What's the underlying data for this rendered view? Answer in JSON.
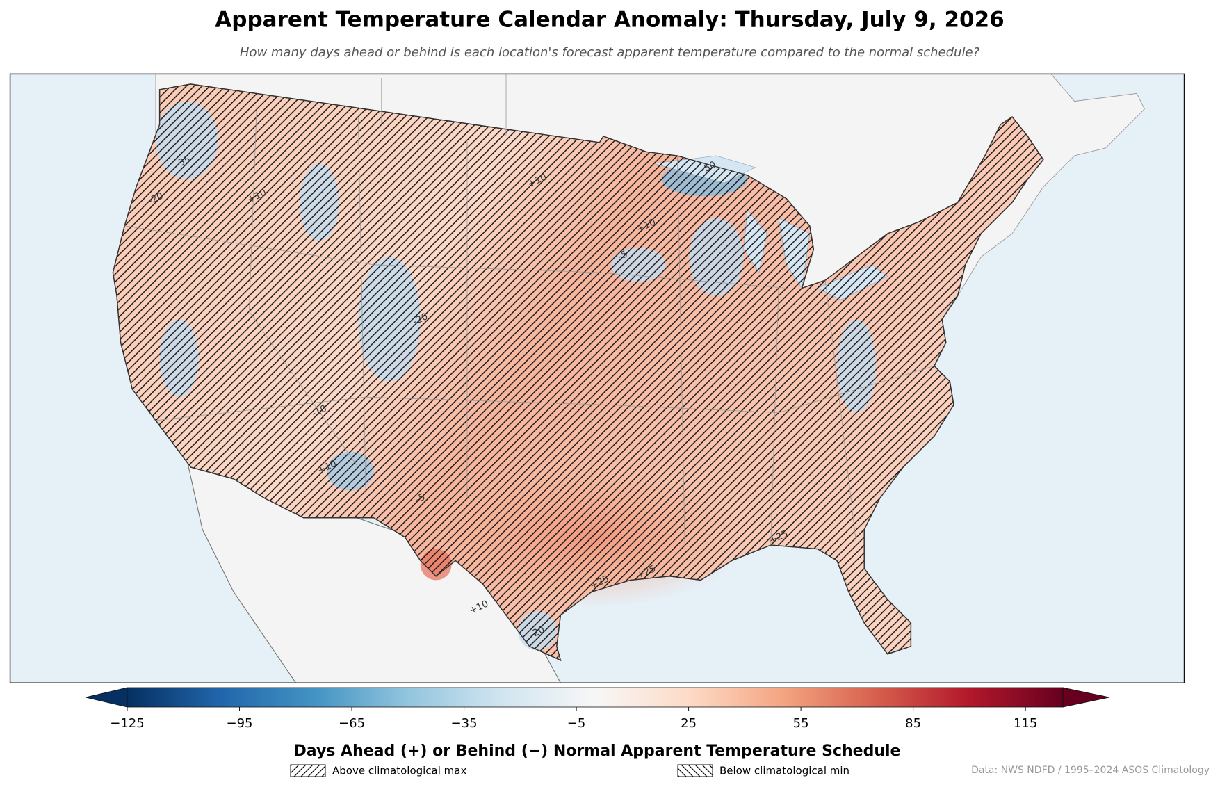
{
  "header": {
    "title": "Apparent Temperature Calendar Anomaly: Thursday, July 9, 2026",
    "subtitle": "How many days ahead or behind is each location's forecast apparent temperature compared to the normal schedule?"
  },
  "map": {
    "contour_labels": [
      "+10",
      "+10",
      "+10",
      "+10",
      "+10",
      "+25",
      "+25",
      "+25",
      "-20",
      "-20",
      "-35",
      "-50",
      "-5",
      "-5",
      "-10",
      "-20"
    ]
  },
  "colorbar": {
    "clim": [
      -125,
      125
    ],
    "ticks": [
      {
        "value": -125,
        "label": "−125"
      },
      {
        "value": -95,
        "label": "−95"
      },
      {
        "value": -65,
        "label": "−65"
      },
      {
        "value": -35,
        "label": "−35"
      },
      {
        "value": -5,
        "label": "−5"
      },
      25,
      55,
      85,
      115
    ],
    "label": "Days Ahead (+) or Behind (−) Normal Apparent Temperature Schedule",
    "extend": "both",
    "colors": [
      "#053061",
      "#2166ac",
      "#4393c3",
      "#92c5de",
      "#d1e5f0",
      "#f7f7f7",
      "#fddbc7",
      "#f4a582",
      "#d6604d",
      "#b2182b",
      "#67001f"
    ]
  },
  "legend": [
    {
      "label": "Above climatological max",
      "hatch": "/"
    },
    {
      "label": "Below climatological min",
      "hatch": "\\"
    }
  ],
  "credit": "Data: NWS NDFD / 1995–2024 ASOS Climatology"
}
